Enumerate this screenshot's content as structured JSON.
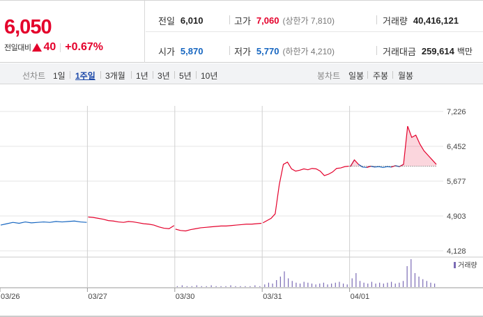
{
  "quote": {
    "price": "6,050",
    "change_label": "전일대비",
    "change_value": "40",
    "change_pct": "+0.67%",
    "prev_close_label": "전일",
    "prev_close": "6,010",
    "high_label": "고가",
    "high": "7,060",
    "upper_limit": "(상한가 7,810)",
    "volume_label": "거래량",
    "volume": "40,416,121",
    "open_label": "시가",
    "open": "5,870",
    "low_label": "저가",
    "low": "5,770",
    "lower_limit": "(하한가 4,210)",
    "trade_value_label": "거래대금",
    "trade_value": "259,614",
    "trade_value_unit": "백만"
  },
  "line_tabs": {
    "label": "선차트",
    "items": [
      "1일",
      "1주일",
      "3개월",
      "1년",
      "3년",
      "5년",
      "10년"
    ],
    "active": "1주일"
  },
  "candle_tabs": {
    "label": "봉차트",
    "items": [
      "일봉",
      "주봉",
      "월봉"
    ]
  },
  "colors": {
    "up": "#e4002b",
    "down": "#1565c0",
    "volume": "#7b6bb5"
  },
  "chart_data": {
    "type": "line",
    "reference_price": 6010,
    "y_ticks": [
      "7,226",
      "6,452",
      "5,677",
      "4,903",
      "4,128"
    ],
    "y_tick_values": [
      7226,
      6452,
      5677,
      4903,
      4128
    ],
    "ylim": [
      4128,
      7226
    ],
    "x_ticks": [
      "03/26",
      "03/27",
      "03/30",
      "03/31",
      "04/01"
    ],
    "sessions": [
      {
        "date": "03/26",
        "prices": [
          4700,
          4730,
          4760,
          4740,
          4770,
          4750,
          4760,
          4770,
          4760,
          4780,
          4770,
          4780,
          4790,
          4770,
          4760
        ]
      },
      {
        "date": "03/27",
        "prices": [
          4880,
          4870,
          4850,
          4830,
          4800,
          4790,
          4770,
          4760,
          4780,
          4770,
          4750,
          4730,
          4720,
          4700,
          4660,
          4630,
          4620,
          4690
        ]
      },
      {
        "date": "03/30",
        "prices": [
          4610,
          4580,
          4570,
          4600,
          4620,
          4640,
          4650,
          4660,
          4670,
          4680,
          4680,
          4690,
          4700,
          4710,
          4720,
          4720,
          4730,
          4740
        ]
      },
      {
        "date": "03/31",
        "prices": [
          4750,
          4800,
          4850,
          4950,
          5600,
          6050,
          6100,
          5950,
          5900,
          5920,
          5950,
          5930,
          5960,
          5950,
          5900,
          5800,
          5830,
          5880,
          5960,
          5970,
          6000,
          6010
        ]
      },
      {
        "date": "04/01",
        "prices": [
          6000,
          6150,
          6050,
          5990,
          5980,
          6010,
          5990,
          6000,
          5980,
          6000,
          5990,
          6020,
          6000,
          6050,
          6900,
          6650,
          6700,
          6500,
          6350,
          6250,
          6150,
          6050
        ]
      }
    ],
    "volume_legend": "거래량",
    "volume": [
      {
        "date": "03/30",
        "bars": [
          1,
          2,
          1,
          1,
          2,
          1,
          1,
          2,
          1,
          1,
          1,
          2,
          1,
          1,
          1,
          1,
          2,
          1
        ]
      },
      {
        "date": "03/31",
        "bars": [
          3,
          5,
          4,
          8,
          12,
          18,
          10,
          7,
          5,
          4,
          6,
          5,
          4,
          3,
          4,
          5,
          3,
          4,
          5,
          6,
          4,
          3
        ]
      },
      {
        "date": "04/01",
        "bars": [
          10,
          16,
          7,
          5,
          4,
          6,
          4,
          5,
          4,
          5,
          6,
          4,
          5,
          7,
          24,
          32,
          16,
          12,
          9,
          7,
          5,
          4
        ]
      }
    ]
  }
}
